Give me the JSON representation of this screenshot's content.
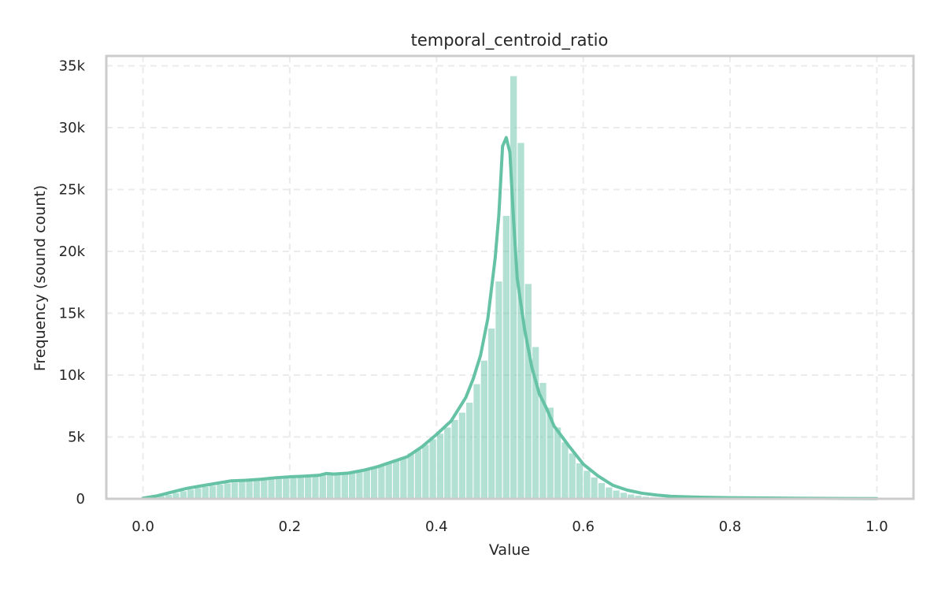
{
  "chart_data": {
    "type": "bar",
    "title": "temporal_centroid_ratio",
    "xlabel": "Value",
    "ylabel": "Frequency (sound count)",
    "xlim": [
      -0.05,
      1.05
    ],
    "ylim": [
      0,
      35800
    ],
    "x_ticks": [
      0.0,
      0.2,
      0.4,
      0.6,
      0.8,
      1.0
    ],
    "x_tick_labels": [
      "0.0",
      "0.2",
      "0.4",
      "0.6",
      "0.8",
      "1.0"
    ],
    "y_ticks": [
      0,
      5000,
      10000,
      15000,
      20000,
      25000,
      30000,
      35000
    ],
    "y_tick_labels": [
      "0",
      "5k",
      "10k",
      "15k",
      "20k",
      "25k",
      "30k",
      "35k"
    ],
    "grid": true,
    "bar_color": "#66c2a5",
    "kde_color": "#66c2a5",
    "bin_width": 0.01,
    "bin_starts": [
      0.0,
      0.01,
      0.02,
      0.03,
      0.04,
      0.05,
      0.06,
      0.07,
      0.08,
      0.09,
      0.1,
      0.11,
      0.12,
      0.13,
      0.14,
      0.15,
      0.16,
      0.17,
      0.18,
      0.19,
      0.2,
      0.21,
      0.22,
      0.23,
      0.24,
      0.25,
      0.26,
      0.27,
      0.28,
      0.29,
      0.3,
      0.31,
      0.32,
      0.33,
      0.34,
      0.35,
      0.36,
      0.37,
      0.38,
      0.39,
      0.4,
      0.41,
      0.42,
      0.43,
      0.44,
      0.45,
      0.46,
      0.47,
      0.48,
      0.49,
      0.5,
      0.51,
      0.52,
      0.53,
      0.54,
      0.55,
      0.56,
      0.57,
      0.58,
      0.59,
      0.6,
      0.61,
      0.62,
      0.63,
      0.64,
      0.65,
      0.66,
      0.67,
      0.68,
      0.69,
      0.7,
      0.71,
      0.72,
      0.73,
      0.74,
      0.75,
      0.76,
      0.77,
      0.78,
      0.79,
      0.8,
      0.81,
      0.82,
      0.83,
      0.84,
      0.85,
      0.86,
      0.87,
      0.88,
      0.89,
      0.9,
      0.91,
      0.92,
      0.93,
      0.94,
      0.95,
      0.96,
      0.97,
      0.98,
      0.99
    ],
    "counts": [
      50,
      150,
      250,
      350,
      500,
      650,
      780,
      900,
      1000,
      1080,
      1180,
      1280,
      1350,
      1420,
      1450,
      1480,
      1550,
      1620,
      1700,
      1750,
      1780,
      1820,
      1850,
      1900,
      2000,
      2080,
      2050,
      2000,
      2150,
      2250,
      2400,
      2600,
      2800,
      3000,
      3200,
      3400,
      3700,
      4000,
      4400,
      4850,
      5300,
      5800,
      6400,
      7000,
      7800,
      9300,
      11200,
      13800,
      17600,
      22900,
      34200,
      28800,
      17400,
      12300,
      9400,
      7400,
      5800,
      4600,
      3700,
      2900,
      2300,
      1750,
      1300,
      950,
      700,
      520,
      380,
      280,
      200,
      150,
      110,
      90,
      75,
      60,
      50,
      40,
      35,
      30,
      28,
      25,
      22,
      20,
      18,
      16,
      14,
      12,
      11,
      10,
      9,
      8,
      7,
      6,
      6,
      5,
      5,
      4,
      4,
      3,
      3,
      3
    ],
    "kde_x": [
      0.0,
      0.02,
      0.04,
      0.06,
      0.08,
      0.1,
      0.12,
      0.14,
      0.16,
      0.18,
      0.2,
      0.22,
      0.24,
      0.25,
      0.26,
      0.28,
      0.3,
      0.32,
      0.34,
      0.36,
      0.38,
      0.4,
      0.42,
      0.44,
      0.45,
      0.46,
      0.47,
      0.48,
      0.485,
      0.49,
      0.495,
      0.5,
      0.505,
      0.51,
      0.52,
      0.53,
      0.54,
      0.55,
      0.56,
      0.58,
      0.6,
      0.62,
      0.64,
      0.66,
      0.68,
      0.7,
      0.72,
      0.75,
      0.8,
      0.85,
      0.9,
      0.95,
      1.0
    ],
    "kde_y": [
      50,
      250,
      550,
      850,
      1050,
      1250,
      1450,
      1500,
      1580,
      1700,
      1780,
      1830,
      1900,
      2050,
      2000,
      2080,
      2300,
      2600,
      3000,
      3400,
      4200,
      5200,
      6300,
      8200,
      9700,
      11600,
      14600,
      19500,
      23000,
      28500,
      29200,
      28000,
      22500,
      17800,
      13700,
      10600,
      8500,
      7300,
      5900,
      4300,
      2800,
      1850,
      1100,
      700,
      450,
      300,
      200,
      140,
      90,
      60,
      40,
      25,
      20
    ]
  }
}
